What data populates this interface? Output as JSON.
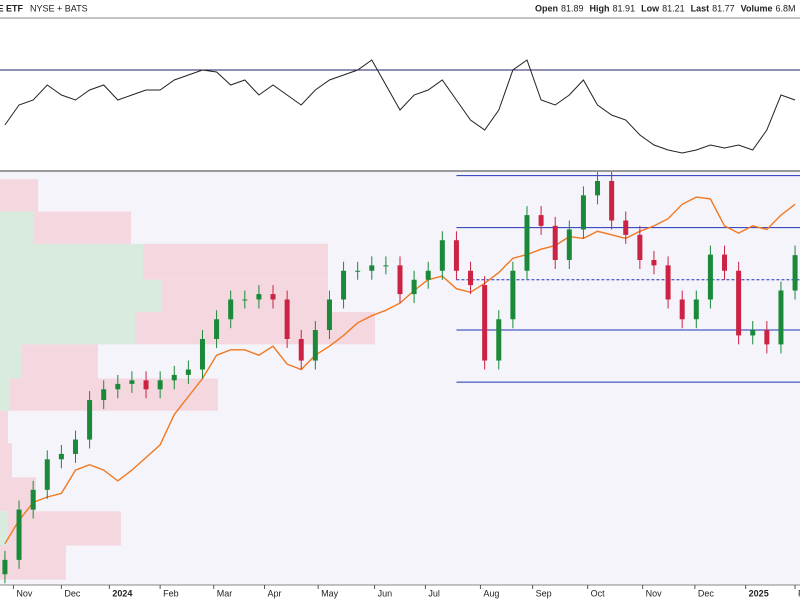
{
  "chart_data": {
    "type": "candlestick",
    "symbol": "FE ETF",
    "exchange": "NYSE + BATS",
    "ohlc_labels": [
      "Open",
      "High",
      "Low",
      "Last"
    ],
    "ohlc_values": [
      81.89,
      81.91,
      81.21,
      81.77
    ],
    "volume": {
      "label": "Volume",
      "value": 6800000,
      "value_label": "6.8M"
    },
    "xlim": [
      -0.35,
      56.35
    ],
    "xticks": [
      {
        "value": 0.6,
        "label": "Nov"
      },
      {
        "value": 4.0,
        "label": "Dec"
      },
      {
        "value": 7.4,
        "label": "2024"
      },
      {
        "value": 11.0,
        "label": "Feb"
      },
      {
        "value": 14.8,
        "label": "Mar"
      },
      {
        "value": 18.4,
        "label": "Apr"
      },
      {
        "value": 22.2,
        "label": "May"
      },
      {
        "value": 26.2,
        "label": "Jun"
      },
      {
        "value": 29.8,
        "label": "Jul"
      },
      {
        "value": 33.7,
        "label": "Aug"
      },
      {
        "value": 37.4,
        "label": "Sep"
      },
      {
        "value": 41.3,
        "label": "Oct"
      },
      {
        "value": 45.2,
        "label": "Nov"
      },
      {
        "value": 48.9,
        "label": "Dec"
      },
      {
        "value": 52.5,
        "label": "2025"
      },
      {
        "value": 56.0,
        "label": "Feb"
      }
    ],
    "ylim": [
      63.4,
      86.4
    ],
    "up_color": "#1a8a3a",
    "down_color": "#cc2244",
    "candles": [
      [
        64.0,
        65.3,
        63.5,
        64.8
      ],
      [
        64.8,
        68.1,
        64.3,
        67.6
      ],
      [
        67.6,
        69.2,
        67.1,
        68.7
      ],
      [
        68.7,
        70.9,
        68.2,
        70.4
      ],
      [
        70.4,
        71.2,
        69.9,
        70.7
      ],
      [
        70.7,
        72.0,
        70.2,
        71.5
      ],
      [
        71.5,
        74.2,
        71.0,
        73.7
      ],
      [
        73.7,
        74.8,
        73.2,
        74.3
      ],
      [
        74.3,
        75.1,
        73.8,
        74.6
      ],
      [
        74.6,
        75.3,
        74.1,
        74.8
      ],
      [
        74.8,
        75.3,
        73.8,
        74.3
      ],
      [
        74.3,
        75.3,
        73.8,
        74.8
      ],
      [
        74.8,
        75.6,
        74.3,
        75.1
      ],
      [
        75.1,
        75.9,
        74.6,
        75.4
      ],
      [
        75.4,
        77.6,
        74.9,
        77.1
      ],
      [
        77.1,
        78.7,
        76.6,
        78.2
      ],
      [
        78.2,
        79.8,
        77.7,
        79.3
      ],
      [
        79.3,
        79.8,
        78.8,
        79.3
      ],
      [
        79.3,
        80.1,
        78.8,
        79.6
      ],
      [
        79.6,
        80.1,
        78.8,
        79.3
      ],
      [
        79.3,
        79.8,
        76.6,
        77.1
      ],
      [
        77.1,
        77.6,
        75.4,
        75.9
      ],
      [
        75.9,
        78.1,
        75.4,
        77.6
      ],
      [
        77.6,
        79.8,
        77.1,
        79.3
      ],
      [
        79.3,
        81.4,
        78.8,
        80.9
      ],
      [
        80.9,
        81.4,
        80.4,
        80.9
      ],
      [
        80.9,
        81.7,
        80.4,
        81.2
      ],
      [
        81.2,
        81.7,
        80.7,
        81.2
      ],
      [
        81.2,
        81.7,
        79.1,
        79.6
      ],
      [
        79.6,
        80.9,
        79.1,
        80.4
      ],
      [
        80.4,
        81.4,
        79.9,
        80.9
      ],
      [
        80.9,
        83.1,
        80.4,
        82.6
      ],
      [
        82.6,
        83.1,
        80.4,
        80.9
      ],
      [
        80.9,
        81.4,
        79.6,
        80.1
      ],
      [
        80.1,
        80.6,
        75.4,
        75.9
      ],
      [
        75.9,
        78.7,
        75.4,
        78.2
      ],
      [
        78.2,
        81.4,
        77.7,
        80.9
      ],
      [
        80.9,
        84.5,
        80.4,
        84.0
      ],
      [
        84.0,
        84.5,
        82.9,
        83.4
      ],
      [
        83.4,
        83.9,
        81.0,
        81.5
      ],
      [
        81.5,
        83.7,
        81.0,
        83.2
      ],
      [
        83.2,
        85.6,
        82.7,
        85.1
      ],
      [
        85.1,
        86.4,
        84.6,
        85.9
      ],
      [
        85.9,
        86.4,
        83.2,
        83.7
      ],
      [
        83.7,
        84.2,
        82.4,
        82.9
      ],
      [
        82.9,
        83.4,
        81.0,
        81.5
      ],
      [
        81.5,
        82.0,
        80.7,
        81.2
      ],
      [
        81.2,
        81.7,
        78.8,
        79.3
      ],
      [
        79.3,
        79.8,
        77.7,
        78.2
      ],
      [
        78.2,
        79.8,
        77.7,
        79.3
      ],
      [
        79.3,
        82.3,
        78.8,
        81.8
      ],
      [
        81.8,
        82.3,
        80.4,
        80.9
      ],
      [
        80.9,
        81.4,
        76.8,
        77.3
      ],
      [
        77.3,
        78.1,
        76.8,
        77.6
      ],
      [
        77.6,
        78.1,
        76.3,
        76.8
      ],
      [
        76.8,
        80.3,
        76.3,
        79.8
      ],
      [
        79.8,
        82.3,
        79.3,
        81.77
      ]
    ],
    "overlay": {
      "color": "#f07820",
      "values": [
        65.7,
        67.0,
        68.0,
        68.3,
        68.5,
        69.8,
        70.1,
        69.8,
        69.2,
        69.8,
        70.5,
        71.2,
        72.9,
        73.9,
        74.9,
        76.2,
        76.5,
        76.5,
        76.2,
        76.7,
        75.7,
        75.4,
        76.2,
        76.7,
        77.3,
        78.0,
        78.4,
        78.7,
        79.1,
        79.8,
        80.4,
        80.6,
        79.9,
        79.7,
        80.2,
        80.8,
        81.6,
        81.8,
        82.1,
        82.3,
        82.8,
        82.7,
        83.1,
        82.9,
        82.7,
        83.1,
        83.4,
        83.8,
        84.6,
        85.0,
        84.9,
        83.4,
        83.0,
        83.4,
        83.2,
        84.0,
        84.6
      ]
    },
    "levels": [
      86.2,
      83.3,
      80.4,
      77.6,
      74.7
    ],
    "levels_from": 32,
    "level_color": "#2233bb",
    "profile": {
      "bins": [
        86.0,
        84.2,
        82.4,
        80.4,
        78.6,
        76.8,
        74.9,
        73.1,
        71.3,
        69.4,
        67.5,
        65.6,
        63.7
      ],
      "up": [
        0,
        33,
        143,
        162,
        135,
        22,
        10,
        0,
        0,
        0,
        8,
        0
      ],
      "down": [
        38,
        98,
        185,
        166,
        240,
        76,
        208,
        8,
        12,
        36,
        113,
        66
      ],
      "xlim": [
        0,
        800
      ],
      "up_color": "#d9ebdf",
      "down_color": "#f5d8df"
    },
    "indicator": {
      "ylim": [
        30,
        90.8
      ],
      "levels": [
        70
      ],
      "color": "#222222",
      "level_color": "#222266",
      "values": [
        48,
        56,
        58,
        64,
        60,
        58,
        62,
        64,
        58,
        60,
        62,
        62,
        66,
        68,
        70,
        69.2,
        64,
        66,
        60,
        64,
        60,
        56,
        62,
        66,
        68,
        70,
        74,
        64,
        54,
        60,
        62,
        66,
        58,
        50,
        46,
        54,
        70,
        74,
        58,
        56,
        60,
        66,
        56,
        52,
        50,
        44,
        40,
        38,
        36.8,
        38,
        40,
        38.8,
        40,
        38,
        46,
        60,
        58
      ]
    }
  }
}
